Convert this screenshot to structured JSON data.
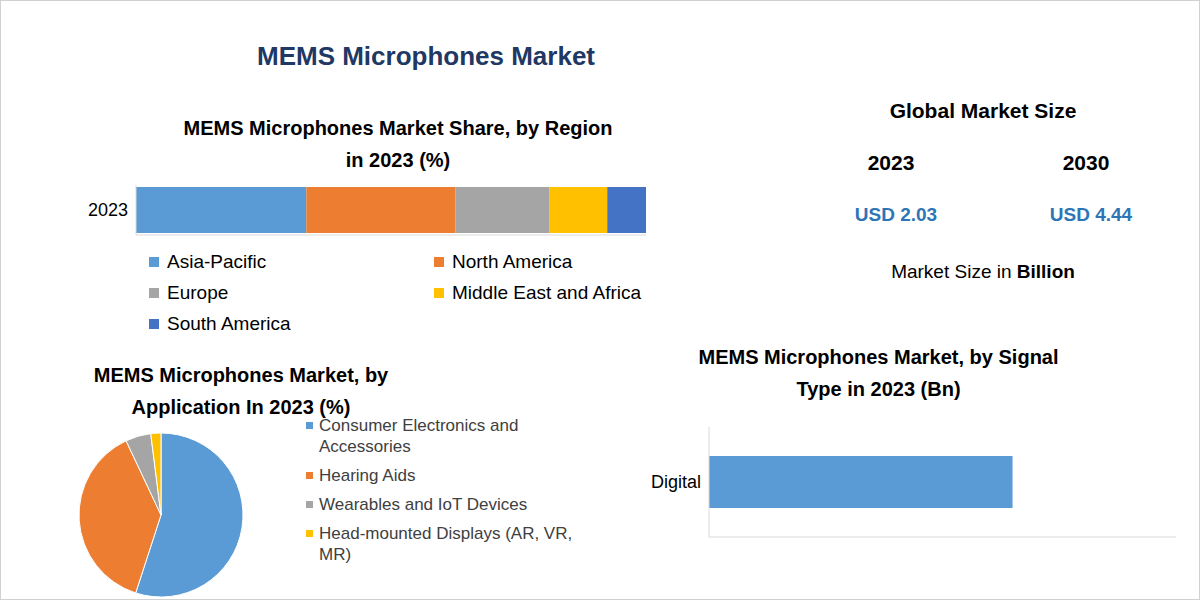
{
  "title": "MEMS Microphones Market",
  "market_size": {
    "title": "Global Market Size",
    "years": [
      "2023",
      "2030"
    ],
    "currency": "USD",
    "values": [
      2.03,
      4.44
    ],
    "note": "Market Size in",
    "note_bold": "Billion"
  },
  "chart_data": [
    {
      "type": "bar",
      "title": "MEMS Microphones Market Share, by Region in 2023 (%)",
      "orientation": "horizontal",
      "stacked": true,
      "categories": [
        "2023"
      ],
      "series": [
        {
          "name": "Asia-Pacific",
          "color": "#5b9bd5",
          "values": [
            33.4
          ]
        },
        {
          "name": "North America",
          "color": "#ed7d31",
          "values": [
            29.2
          ]
        },
        {
          "name": "Europe",
          "color": "#a5a5a5",
          "values": [
            18.5
          ]
        },
        {
          "name": "Middle East and Africa",
          "color": "#ffc000",
          "values": [
            11.3
          ]
        },
        {
          "name": "South America",
          "color": "#4472c4",
          "values": [
            7.6
          ]
        }
      ],
      "xlim": [
        0,
        100
      ],
      "xticks": [],
      "tick_labels": "y",
      "legend": "bottom"
    },
    {
      "type": "pie",
      "title": "MEMS Microphones Market, by Application In 2023 (%)",
      "categories": [
        "Consumer Electronics and Accessories",
        "Hearing Aids",
        "Wearables and IoT Devices",
        "Head-mounted Displays (AR, VR, MR)"
      ],
      "values": [
        55,
        38,
        5,
        2
      ],
      "colors": [
        "#5b9bd5",
        "#ed7d31",
        "#a5a5a5",
        "#ffc000"
      ],
      "legend": "right"
    },
    {
      "type": "bar",
      "title": "MEMS Microphones Market, by Signal Type in 2023 (Bn)",
      "orientation": "horizontal",
      "categories": [
        "Digital"
      ],
      "values": [
        1.3
      ],
      "color": "#5b9bd5",
      "xlim": [
        0,
        2
      ],
      "xticks": [],
      "tick_labels": "y"
    }
  ]
}
